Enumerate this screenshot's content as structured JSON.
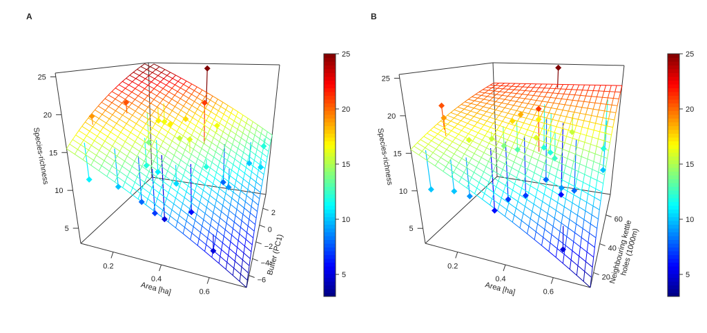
{
  "chart_data": [
    {
      "panel": "A",
      "type": "scatter",
      "title": "",
      "xlabel": "Area [ha]",
      "ylabel": "Buffer (PC1)",
      "zlabel": "Species-richness",
      "xlim": [
        0.065,
        0.755
      ],
      "ylim": [
        -7.44,
        3.66
      ],
      "zlim": [
        3,
        25.5
      ],
      "xticks": [
        "0.2",
        "0.4",
        "0.6"
      ],
      "yticks": [
        "-6",
        "-4",
        "-2",
        "0",
        "2"
      ],
      "zticks": [
        "5",
        "10",
        "15",
        "20",
        "25"
      ],
      "colorbar": {
        "range": [
          3,
          25
        ],
        "ticks": [
          "5",
          "10",
          "15",
          "20",
          "25"
        ]
      },
      "surface_corners": {
        "xmin_ymin": 15.5,
        "xmax_ymin": 3.0,
        "xmax_ymax": 13.3,
        "xmin_ymax": 25.8,
        "interaction": 0
      },
      "points": [
        [
          0.4,
          2.8,
          25
        ],
        [
          0.47,
          -0.5,
          21
        ],
        [
          0.16,
          -2.0,
          20.5
        ],
        [
          0.09,
          -4.5,
          19
        ],
        [
          0.24,
          0.0,
          17
        ],
        [
          0.25,
          0.6,
          16.5
        ],
        [
          0.31,
          -0.5,
          17
        ],
        [
          0.36,
          0.4,
          17.5
        ],
        [
          0.37,
          -1.2,
          15.5
        ],
        [
          0.43,
          -1.8,
          16
        ],
        [
          0.5,
          1.0,
          16.5
        ],
        [
          0.22,
          -1.0,
          14
        ],
        [
          0.26,
          -3.0,
          12
        ],
        [
          0.3,
          -2.6,
          11
        ],
        [
          0.19,
          -5.2,
          10
        ],
        [
          0.4,
          -3.4,
          10.5
        ],
        [
          0.1,
          -6.2,
          11
        ],
        [
          0.5,
          -1.5,
          12
        ],
        [
          0.27,
          -4.6,
          8
        ],
        [
          0.33,
          -4.8,
          7
        ],
        [
          0.55,
          0.5,
          8
        ],
        [
          0.6,
          -1.0,
          9
        ],
        [
          0.66,
          2.0,
          10
        ],
        [
          0.72,
          3.0,
          12
        ],
        [
          0.73,
          1.2,
          10.5
        ],
        [
          0.6,
          -6.0,
          5
        ],
        [
          0.45,
          -2.6,
          6
        ],
        [
          0.34,
          -3.4,
          5
        ]
      ]
    },
    {
      "panel": "B",
      "type": "scatter",
      "title": "",
      "xlabel": "Area [ha]",
      "ylabel": "Neighbouring kettle holes (1000m)",
      "ylabel_lines": [
        "Neighbouring kettle",
        "holes (1000m)"
      ],
      "zlabel": "Species-richness",
      "xlim": [
        0.065,
        0.755
      ],
      "ylim": [
        9.7,
        74.2
      ],
      "zlim": [
        3,
        25.5
      ],
      "xticks": [
        "0.2",
        "0.4",
        "0.6"
      ],
      "yticks": [
        "20",
        "40",
        "60"
      ],
      "zticks": [
        "5",
        "10",
        "15",
        "20",
        "25"
      ],
      "colorbar": {
        "range": [
          3,
          25
        ],
        "ticks": [
          "5",
          "10",
          "15",
          "20",
          "25"
        ]
      },
      "surface_corners": {
        "xmin_ymin": 15.5,
        "xmax_ymin": 3.0,
        "xmax_ymax": 22.0,
        "xmin_ymax": 21.5,
        "interaction": 13
      },
      "points": [
        [
          0.42,
          72,
          25
        ],
        [
          0.46,
          40,
          21
        ],
        [
          0.1,
          30,
          20.5
        ],
        [
          0.12,
          27,
          19
        ],
        [
          0.3,
          50,
          17.5
        ],
        [
          0.33,
          52,
          18.5
        ],
        [
          0.38,
          60,
          17
        ],
        [
          0.2,
          30,
          16
        ],
        [
          0.25,
          40,
          15.5
        ],
        [
          0.43,
          45,
          16
        ],
        [
          0.55,
          60,
          15.5
        ],
        [
          0.28,
          45,
          14
        ],
        [
          0.32,
          50,
          13
        ],
        [
          0.4,
          62,
          12
        ],
        [
          0.45,
          58,
          12
        ],
        [
          0.5,
          50,
          12.5
        ],
        [
          0.1,
          14,
          10
        ],
        [
          0.18,
          17,
          10
        ],
        [
          0.22,
          22,
          9
        ],
        [
          0.28,
          32,
          6
        ],
        [
          0.32,
          38,
          7
        ],
        [
          0.38,
          44,
          7
        ],
        [
          0.44,
          55,
          8
        ],
        [
          0.55,
          45,
          9
        ],
        [
          0.6,
          50,
          8
        ],
        [
          0.7,
          68,
          12
        ],
        [
          0.72,
          60,
          10
        ],
        [
          0.62,
          20,
          5
        ],
        [
          0.52,
          55,
          6
        ]
      ]
    }
  ],
  "panels": {
    "a_label": "A",
    "b_label": "B"
  }
}
